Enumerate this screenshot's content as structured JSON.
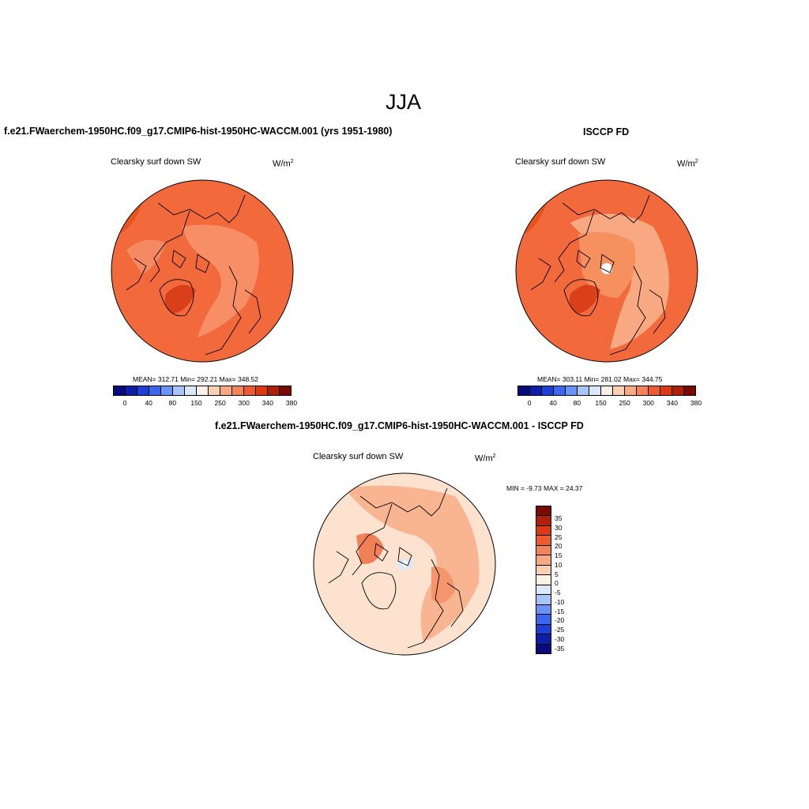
{
  "figure": {
    "season_title": "JJA",
    "panel_model_title": "f.e21.FWaerchem-1950HC.f09_g17.CMIP6-hist-1950HC-WACCM.001 (yrs 1951-1980)",
    "panel_obs_title": "ISCCP FD",
    "panel_diff_title": "f.e21.FWaerchem-1950HC.f09_g17.CMIP6-hist-1950HC-WACCM.001 - ISCCP FD"
  },
  "panels": {
    "model": {
      "variable": "Clearsky surf down SW",
      "units": "W/m",
      "units_sup": "2",
      "stats": "MEAN= 312.71  Min= 292.21  Max= 348.52"
    },
    "obs": {
      "variable": "Clearsky surf down SW",
      "units": "W/m",
      "units_sup": "2",
      "stats": "MEAN= 303.11  Min= 281.02  Max= 344.75"
    },
    "diff": {
      "variable": "Clearsky surf down SW",
      "units": "W/m",
      "units_sup": "2",
      "stats": "MIN =  -9.73 MAX =  24.37"
    }
  },
  "abs_colorbar": {
    "tick_labels": [
      "0",
      "40",
      "80",
      "150",
      "250",
      "300",
      "340",
      "380"
    ],
    "colors": [
      "#0a0a7a",
      "#0d1fa8",
      "#1e3fd6",
      "#3a66f0",
      "#6b92f5",
      "#a8c3f8",
      "#dbe8fb",
      "#fdf1e6",
      "#fcd0b0",
      "#f9a982",
      "#f5835a",
      "#ee5a32",
      "#dc3a14",
      "#b02008",
      "#7a0a04"
    ]
  },
  "diff_colorbar": {
    "tick_labels": [
      "35",
      "30",
      "25",
      "20",
      "15",
      "10",
      "5",
      "0",
      "-5",
      "-10",
      "-15",
      "-20",
      "-25",
      "-30",
      "-35"
    ],
    "colors": [
      "#7a0a04",
      "#b02008",
      "#dc3a14",
      "#ee5a32",
      "#f5835a",
      "#f9a982",
      "#fcd0b0",
      "#fdf1e6",
      "#dbe8fb",
      "#a8c3f8",
      "#6b92f5",
      "#3a66f0",
      "#1e3fd6",
      "#0d1fa8",
      "#0a0a7a"
    ]
  },
  "map_colors": {
    "model_base": "#f2693c",
    "model_light": "#f78e66",
    "model_dark": "#e0451c",
    "obs_base": "#f2693c",
    "obs_light": "#f9a982",
    "obs_dark": "#e0451c",
    "diff_base": "#fde3cf",
    "diff_mid": "#f9b592",
    "diff_dark": "#f08058",
    "diff_blue": "#dbe8fb"
  }
}
